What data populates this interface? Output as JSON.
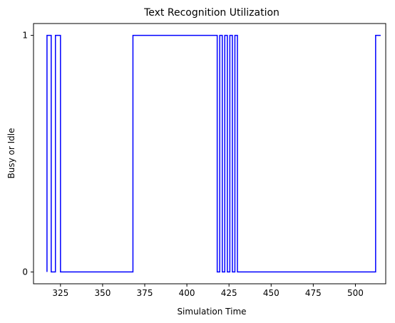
{
  "chart_data": {
    "type": "line",
    "drawstyle": "steps",
    "title": "Text Recognition Utilization",
    "xlabel": "Simulation Time",
    "ylabel": "Busy or Idle",
    "xlim": [
      309,
      518
    ],
    "ylim": [
      -0.05,
      1.05
    ],
    "xticks": [
      325,
      350,
      375,
      400,
      425,
      450,
      475,
      500
    ],
    "yticks": [
      0,
      1
    ],
    "grid": false,
    "colors": {
      "line": "#0000ff",
      "axes": "#000000",
      "background": "#ffffff"
    },
    "series": [
      {
        "x": [
          317,
          317,
          319.5,
          319.5,
          322,
          322,
          325,
          325,
          365,
          365,
          368,
          368,
          418,
          418,
          419.5,
          419.5,
          421,
          421,
          422.5,
          422.5,
          424,
          424,
          425.5,
          425.5,
          427,
          427,
          428.5,
          428.5,
          430,
          430,
          512,
          512,
          515
        ],
        "y": [
          0,
          1,
          1,
          0,
          0,
          1,
          1,
          0,
          0,
          0,
          0,
          1,
          1,
          0,
          0,
          1,
          1,
          0,
          0,
          1,
          1,
          0,
          0,
          1,
          1,
          0,
          0,
          1,
          1,
          0,
          0,
          1,
          1
        ]
      }
    ]
  }
}
